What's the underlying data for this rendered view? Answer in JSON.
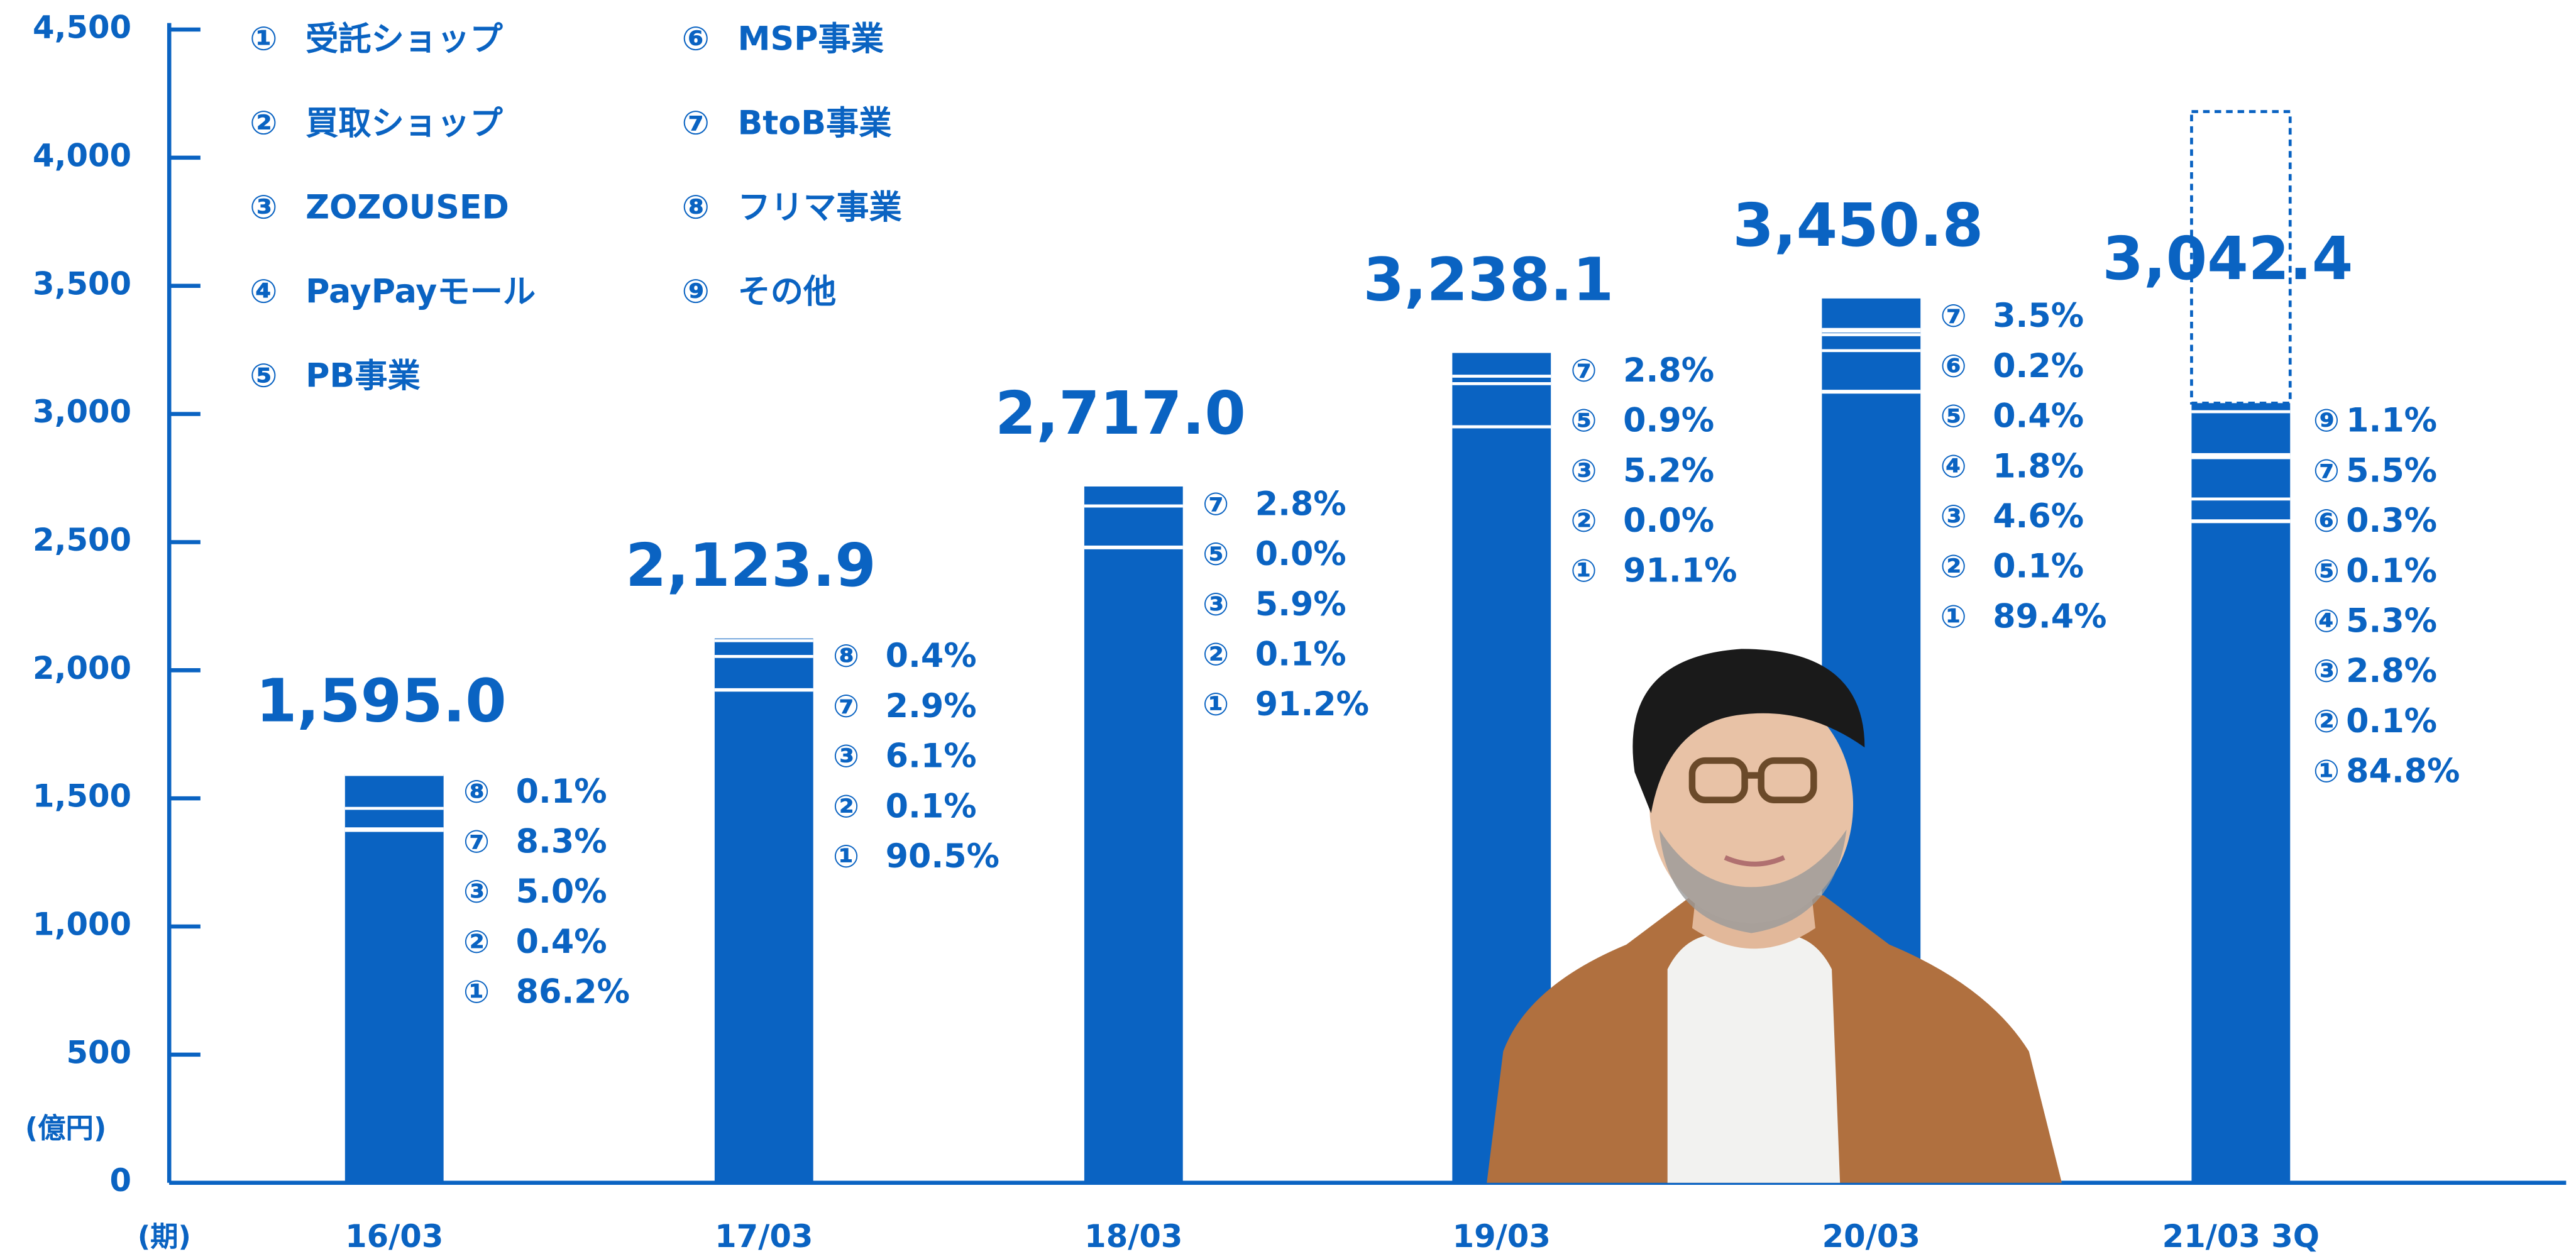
{
  "chart_data": {
    "type": "bar",
    "y_unit_label": "(億円)",
    "x_unit_label": "(期)",
    "color": "#0a63c2",
    "ylim": [
      0,
      4500
    ],
    "yticks": [
      0,
      500,
      {
        "value": 1000,
        "label": "1,000"
      },
      {
        "value": 1500,
        "label": "1,500"
      },
      {
        "value": 2000,
        "label": "2,000"
      },
      {
        "value": 2500,
        "label": "2,500"
      },
      {
        "value": 3000,
        "label": "3,000"
      },
      {
        "value": 3500,
        "label": "3,500"
      },
      {
        "value": 4000,
        "label": "4,000"
      },
      {
        "value": 4500,
        "label": "4,500"
      }
    ],
    "legend": [
      {
        "marker": "①",
        "name": "受託ショップ"
      },
      {
        "marker": "②",
        "name": "買取ショップ"
      },
      {
        "marker": "③",
        "name": "ZOZOUSED"
      },
      {
        "marker": "④",
        "name": "PayPayモール"
      },
      {
        "marker": "⑤",
        "name": "PB事業"
      },
      {
        "marker": "⑥",
        "name": "MSP事業"
      },
      {
        "marker": "⑦",
        "name": "BtoB事業"
      },
      {
        "marker": "⑧",
        "name": "フリマ事業"
      },
      {
        "marker": "⑨",
        "name": "その他"
      }
    ],
    "categories": [
      "16/03",
      "17/03",
      "18/03",
      "19/03",
      "20/03",
      "21/03 3Q"
    ],
    "values": [
      1595.0,
      2123.9,
      2717.0,
      3238.1,
      3450.8,
      3042.4
    ],
    "value_labels": [
      "1,595.0",
      "2,123.9",
      "2,717.0",
      "3,238.1",
      "3,450.8",
      "3,042.4"
    ],
    "forecast_values": [
      null,
      null,
      null,
      null,
      null,
      4180
    ],
    "breakdowns": [
      [
        {
          "marker": "⑧",
          "value": 0.1,
          "value_label": "0.1%"
        },
        {
          "marker": "⑦",
          "value": 8.3,
          "value_label": "8.3%"
        },
        {
          "marker": "③",
          "value": 5.0,
          "value_label": "5.0%"
        },
        {
          "marker": "②",
          "value": 0.4,
          "value_label": "0.4%"
        },
        {
          "marker": "①",
          "value": 86.2,
          "value_label": "86.2%"
        }
      ],
      [
        {
          "marker": "⑧",
          "value": 0.4,
          "value_label": "0.4%"
        },
        {
          "marker": "⑦",
          "value": 2.9,
          "value_label": "2.9%"
        },
        {
          "marker": "③",
          "value": 6.1,
          "value_label": "6.1%"
        },
        {
          "marker": "②",
          "value": 0.1,
          "value_label": "0.1%"
        },
        {
          "marker": "①",
          "value": 90.5,
          "value_label": "90.5%"
        }
      ],
      [
        {
          "marker": "⑦",
          "value": 2.8,
          "value_label": "2.8%"
        },
        {
          "marker": "⑤",
          "value": 0.0,
          "value_label": "0.0%"
        },
        {
          "marker": "③",
          "value": 5.9,
          "value_label": "5.9%"
        },
        {
          "marker": "②",
          "value": 0.1,
          "value_label": "0.1%"
        },
        {
          "marker": "①",
          "value": 91.2,
          "value_label": "91.2%"
        }
      ],
      [
        {
          "marker": "⑦",
          "value": 2.8,
          "value_label": "2.8%"
        },
        {
          "marker": "⑤",
          "value": 0.9,
          "value_label": "0.9%"
        },
        {
          "marker": "③",
          "value": 5.2,
          "value_label": "5.2%"
        },
        {
          "marker": "②",
          "value": 0.0,
          "value_label": "0.0%"
        },
        {
          "marker": "①",
          "value": 91.1,
          "value_label": "91.1%"
        }
      ],
      [
        {
          "marker": "⑦",
          "value": 3.5,
          "value_label": "3.5%"
        },
        {
          "marker": "⑥",
          "value": 0.2,
          "value_label": "0.2%"
        },
        {
          "marker": "⑤",
          "value": 0.4,
          "value_label": "0.4%"
        },
        {
          "marker": "④",
          "value": 1.8,
          "value_label": "1.8%"
        },
        {
          "marker": "③",
          "value": 4.6,
          "value_label": "4.6%"
        },
        {
          "marker": "②",
          "value": 0.1,
          "value_label": "0.1%"
        },
        {
          "marker": "①",
          "value": 89.4,
          "value_label": "89.4%"
        }
      ],
      [
        {
          "marker": "⑨",
          "value": 1.1,
          "value_label": "1.1%"
        },
        {
          "marker": "⑦",
          "value": 5.5,
          "value_label": "5.5%"
        },
        {
          "marker": "⑥",
          "value": 0.3,
          "value_label": "0.3%"
        },
        {
          "marker": "⑤",
          "value": 0.1,
          "value_label": "0.1%"
        },
        {
          "marker": "④",
          "value": 5.3,
          "value_label": "5.3%"
        },
        {
          "marker": "③",
          "value": 2.8,
          "value_label": "2.8%"
        },
        {
          "marker": "②",
          "value": 0.1,
          "value_label": "0.1%"
        },
        {
          "marker": "①",
          "value": 84.8,
          "value_label": "84.8%"
        }
      ]
    ]
  }
}
